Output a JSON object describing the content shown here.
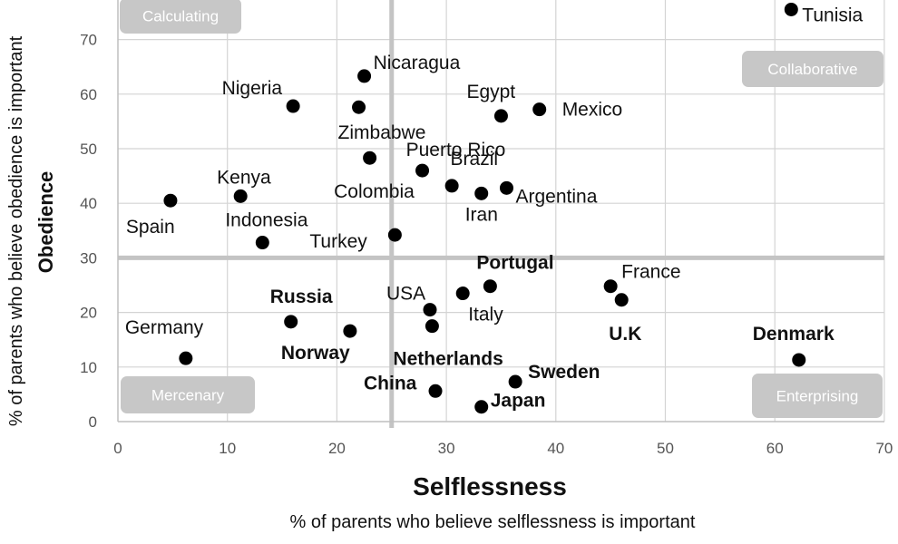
{
  "chart_data": {
    "type": "scatter",
    "title": "",
    "xlabel": "Selflessness",
    "x_sublabel": "% of parents who believe selflessness is important",
    "ylabel": "Obedience",
    "y_sublabel": "% of parents who believe obedience is important",
    "xlim": [
      0,
      70
    ],
    "ylim": [
      0,
      75
    ],
    "x_ticks": [
      0,
      10,
      20,
      30,
      40,
      50,
      60,
      70
    ],
    "y_ticks": [
      0,
      10,
      20,
      30,
      40,
      50,
      60,
      70
    ],
    "grid": true,
    "divider_lines": {
      "x": 25,
      "y": 30
    },
    "quadrants": [
      {
        "label": "Calculating",
        "position": "top-left"
      },
      {
        "label": "Collaborative",
        "position": "top-right"
      },
      {
        "label": "Mercenary",
        "position": "bottom-left"
      },
      {
        "label": "Enterprising",
        "position": "bottom-right"
      }
    ],
    "points": [
      {
        "label": "Tunisia",
        "x": 61.5,
        "y": 75.5,
        "bold": false
      },
      {
        "label": "Nicaragua",
        "x": 22.5,
        "y": 63.3,
        "bold": false
      },
      {
        "label": "Nigeria",
        "x": 16.0,
        "y": 57.8,
        "bold": false
      },
      {
        "label": "Zimbabwe",
        "x": 22.0,
        "y": 57.6,
        "bold": false
      },
      {
        "label": "Egypt",
        "x": 35.0,
        "y": 56.0,
        "bold": false
      },
      {
        "label": "Mexico",
        "x": 38.5,
        "y": 57.2,
        "bold": false
      },
      {
        "label": "Puerto Rico",
        "x": 23.0,
        "y": 48.3,
        "bold": false
      },
      {
        "label": "Brazil",
        "x": 27.8,
        "y": 46.0,
        "bold": false
      },
      {
        "label": "Colombia",
        "x": 30.5,
        "y": 43.2,
        "bold": false
      },
      {
        "label": "Iran",
        "x": 33.2,
        "y": 41.8,
        "bold": false
      },
      {
        "label": "Argentina",
        "x": 35.5,
        "y": 42.8,
        "bold": false
      },
      {
        "label": "Kenya",
        "x": 11.2,
        "y": 41.3,
        "bold": false
      },
      {
        "label": "Spain",
        "x": 4.8,
        "y": 40.5,
        "bold": false
      },
      {
        "label": "Indonesia",
        "x": 13.2,
        "y": 32.8,
        "bold": false
      },
      {
        "label": "Turkey",
        "x": 25.3,
        "y": 34.2,
        "bold": false
      },
      {
        "label": "Portugal",
        "x": 34.0,
        "y": 24.8,
        "bold": true
      },
      {
        "label": "Italy",
        "x": 31.5,
        "y": 23.5,
        "bold": false
      },
      {
        "label": "USA",
        "x": 28.5,
        "y": 20.5,
        "bold": false
      },
      {
        "label": "Netherlands",
        "x": 28.7,
        "y": 17.5,
        "bold": true
      },
      {
        "label": "France",
        "x": 45.0,
        "y": 24.8,
        "bold": false
      },
      {
        "label": "U.K",
        "x": 46.0,
        "y": 22.3,
        "bold": true
      },
      {
        "label": "Russia",
        "x": 15.8,
        "y": 18.3,
        "bold": true
      },
      {
        "label": "Norway",
        "x": 21.2,
        "y": 16.6,
        "bold": true
      },
      {
        "label": "Germany",
        "x": 6.2,
        "y": 11.6,
        "bold": false
      },
      {
        "label": "Denmark",
        "x": 62.2,
        "y": 11.3,
        "bold": true
      },
      {
        "label": "Sweden",
        "x": 36.3,
        "y": 7.3,
        "bold": true
      },
      {
        "label": "China",
        "x": 29.0,
        "y": 5.6,
        "bold": true
      },
      {
        "label": "Japan",
        "x": 33.2,
        "y": 2.7,
        "bold": true
      }
    ]
  }
}
